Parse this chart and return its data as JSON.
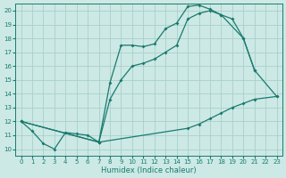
{
  "bg_color": "#cce9e5",
  "grid_color": "#aacfcc",
  "line_color": "#1a7a6e",
  "xlabel": "Humidex (Indice chaleur)",
  "xlim": [
    -0.5,
    23.5
  ],
  "ylim": [
    9.5,
    20.5
  ],
  "yticks": [
    10,
    11,
    12,
    13,
    14,
    15,
    16,
    17,
    18,
    19,
    20
  ],
  "xticks": [
    0,
    1,
    2,
    3,
    4,
    5,
    6,
    7,
    8,
    9,
    10,
    11,
    12,
    13,
    14,
    15,
    16,
    17,
    18,
    19,
    20,
    21,
    22,
    23
  ],
  "line1_x": [
    0,
    1,
    2,
    3,
    4,
    5,
    6,
    7,
    8,
    9,
    10,
    11,
    12,
    13,
    14,
    15,
    16,
    17,
    18,
    19,
    20,
    21
  ],
  "line1_y": [
    12.0,
    11.3,
    10.4,
    10.0,
    11.2,
    11.1,
    11.0,
    10.5,
    14.8,
    17.5,
    17.5,
    17.4,
    17.6,
    18.7,
    19.1,
    20.3,
    20.4,
    20.1,
    19.7,
    19.4,
    18.0,
    15.7
  ],
  "line2_x": [
    0,
    7,
    8,
    9,
    10,
    11,
    12,
    13,
    14,
    15,
    16,
    17,
    18,
    20,
    21,
    23
  ],
  "line2_y": [
    12.0,
    10.5,
    13.6,
    15.0,
    16.0,
    16.2,
    16.5,
    17.0,
    17.5,
    19.4,
    19.8,
    20.0,
    19.7,
    18.0,
    15.7,
    13.8
  ],
  "line3_x": [
    0,
    7,
    15,
    16,
    17,
    18,
    19,
    20,
    21,
    23
  ],
  "line3_y": [
    12.0,
    10.5,
    11.5,
    11.8,
    12.2,
    12.6,
    13.0,
    13.3,
    13.6,
    13.8
  ]
}
